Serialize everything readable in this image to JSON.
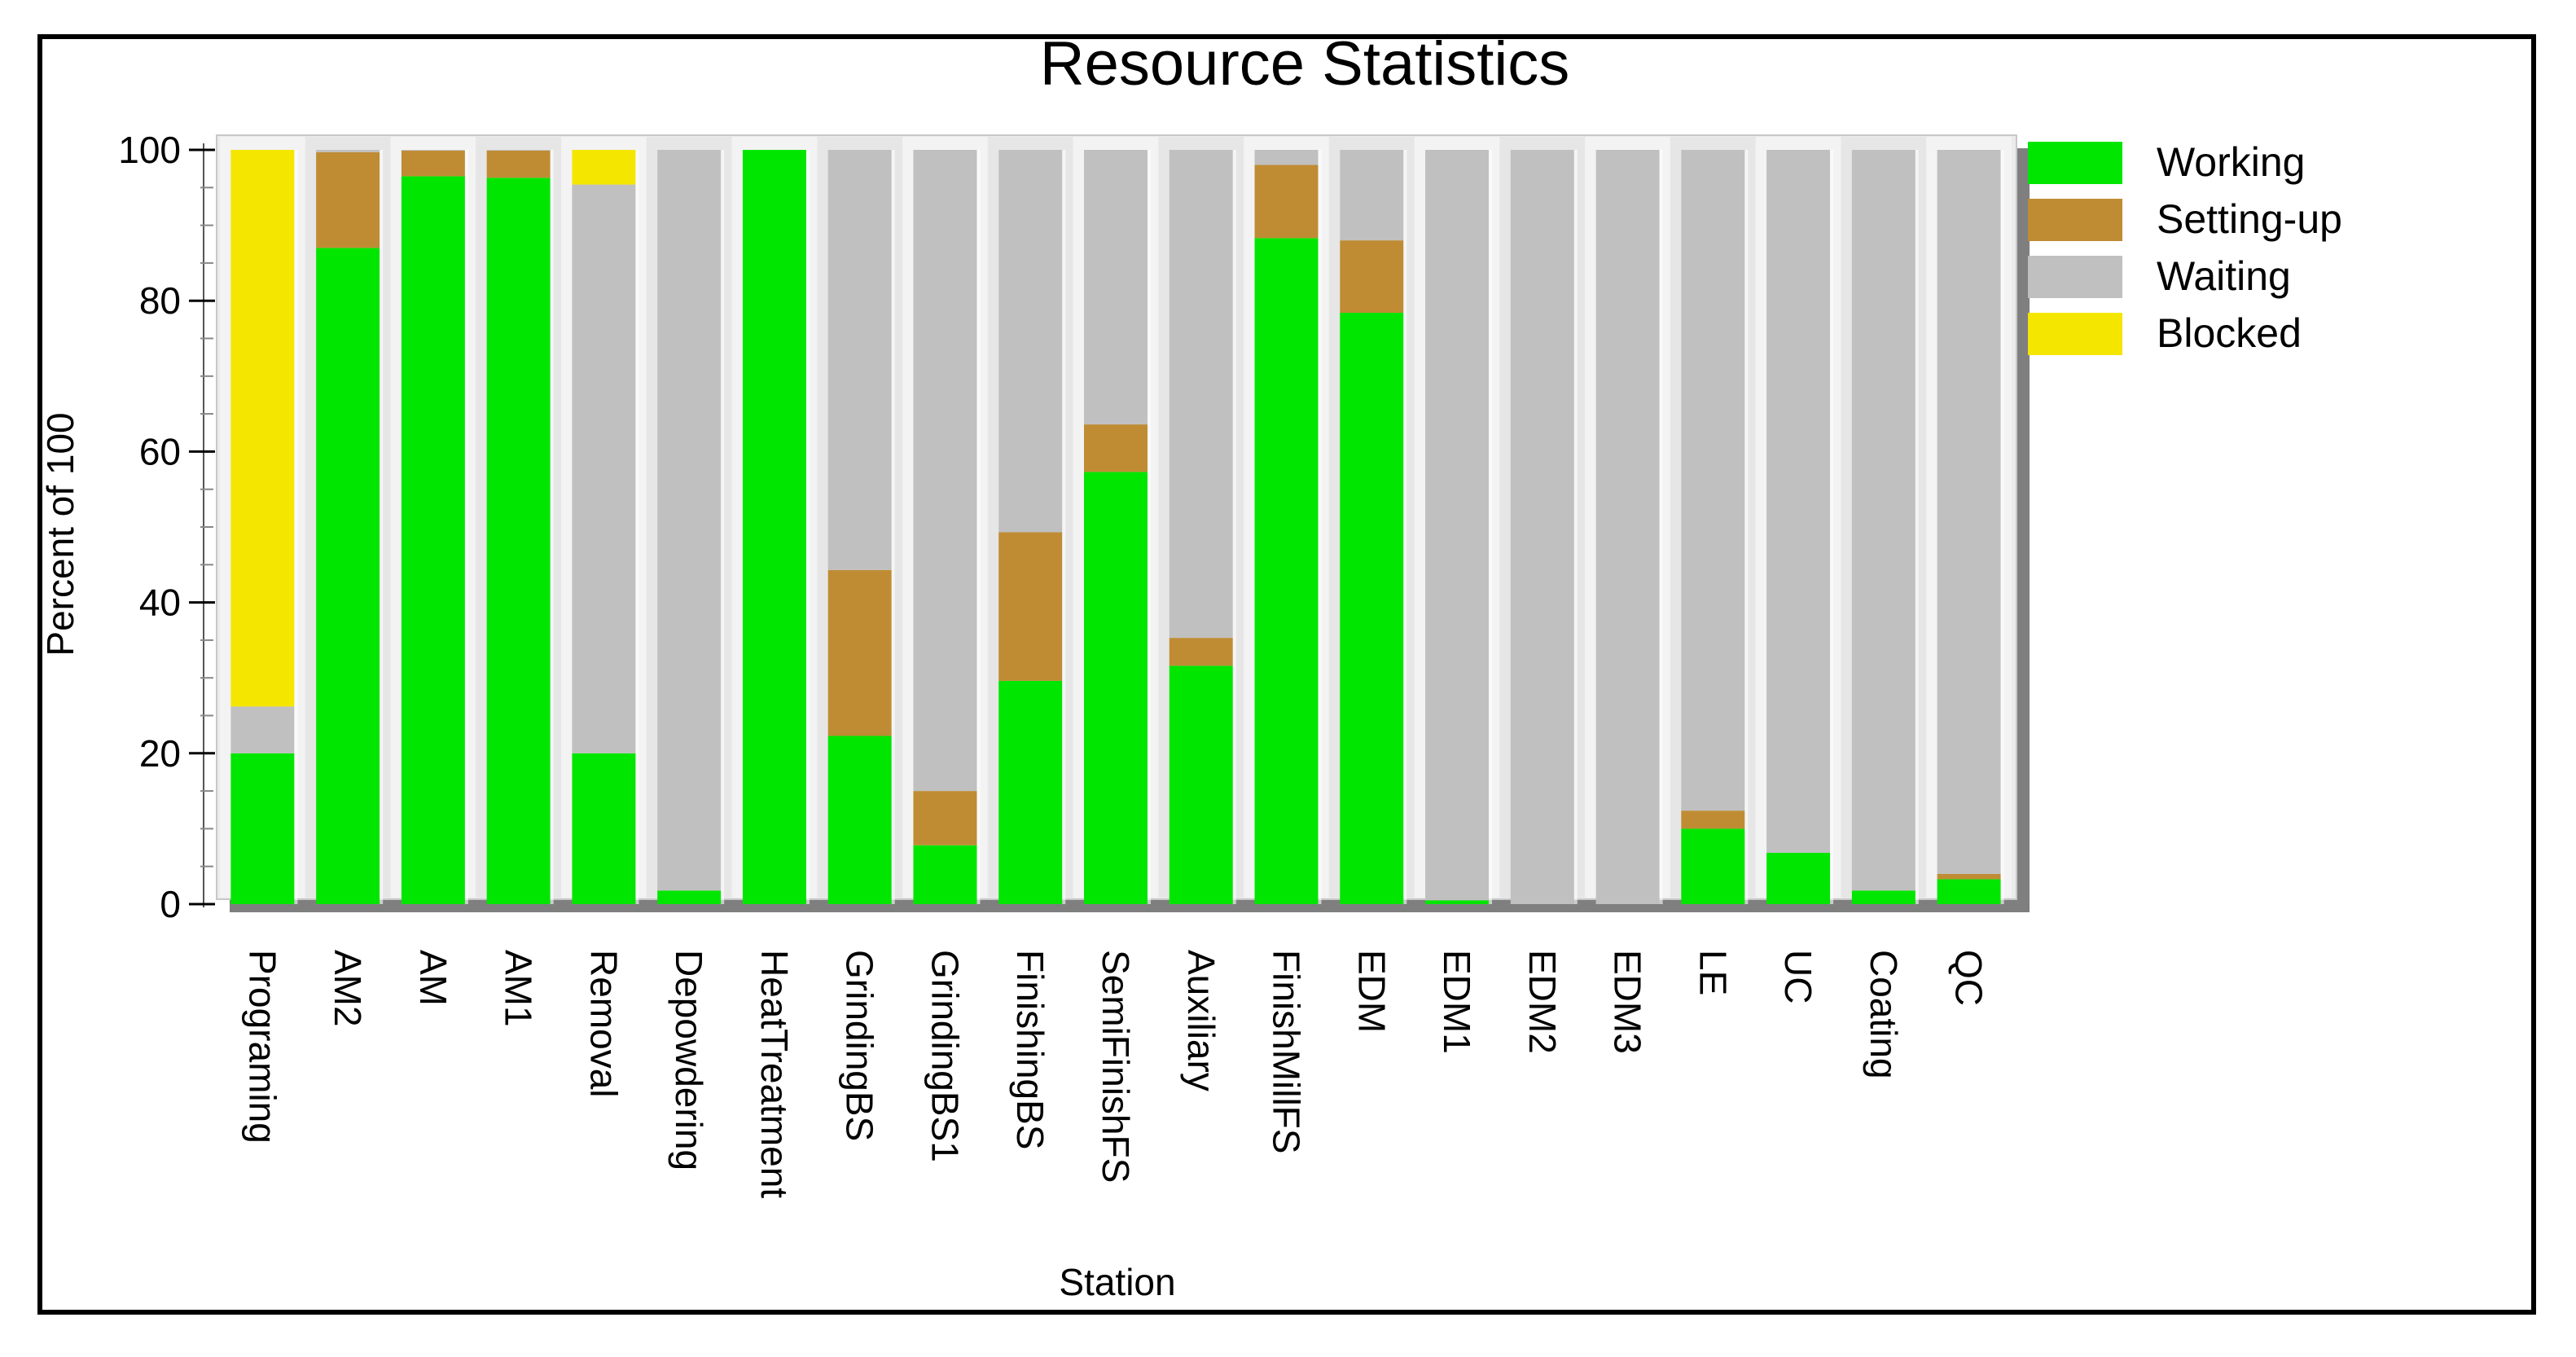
{
  "chart_data": {
    "type": "bar",
    "stacked": true,
    "title": "Resource Statistics",
    "xlabel": "Station",
    "ylabel": "Percent of 100",
    "ylim": [
      0,
      100
    ],
    "yticks": [
      0,
      20,
      40,
      60,
      80,
      100
    ],
    "legend_position": "right",
    "grid": false,
    "categories": [
      "Programing",
      "AM2",
      "AM",
      "AM1",
      "Removal",
      "Depowdering",
      "HeatTreatment",
      "GrindingBS",
      "GrindingBS1",
      "FinishingBS",
      "SemiFinishFS",
      "Auxiliary",
      "FinishMillFS",
      "EDM",
      "EDM1",
      "EDM2",
      "EDM3",
      "LE",
      "UC",
      "Coating",
      "QC"
    ],
    "series": [
      {
        "name": "Working",
        "color": "#00e600",
        "values": [
          20,
          87,
          96.5,
          96.3,
          20,
          1.8,
          100,
          22.3,
          7.8,
          29.6,
          57.3,
          31.6,
          88.3,
          78.4,
          0.5,
          0,
          0,
          10,
          6.8,
          1.8,
          3.3
        ]
      },
      {
        "name": "Setting-up",
        "color": "#bf8c34",
        "values": [
          0,
          12.7,
          3.4,
          3.6,
          0,
          0,
          0,
          22,
          7.2,
          19.7,
          6.3,
          3.7,
          9.7,
          9.6,
          0,
          0,
          0,
          2.4,
          0,
          0,
          0.7
        ]
      },
      {
        "name": "Waiting",
        "color": "#c0c0c0",
        "values": [
          6.2,
          0.3,
          0.1,
          0.1,
          75.4,
          98.2,
          0,
          55.7,
          85,
          50.7,
          36.4,
          64.7,
          2,
          12,
          99.5,
          100,
          100,
          87.6,
          93.2,
          98.2,
          96
        ]
      },
      {
        "name": "Blocked",
        "color": "#f5e600",
        "values": [
          73.8,
          0,
          0,
          0,
          4.6,
          0,
          0,
          0,
          0,
          0,
          0,
          0,
          0,
          0,
          0,
          0,
          0,
          0,
          0,
          0,
          0
        ]
      }
    ]
  }
}
